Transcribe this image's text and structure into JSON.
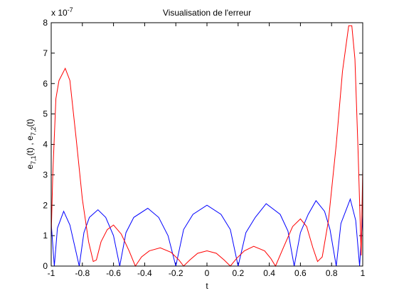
{
  "chart_data": {
    "type": "line",
    "title": "Visualisation de l'erreur",
    "xlabel": "t",
    "ylabel": [
      "e",
      "7,1",
      "(t) , e",
      "7,2",
      "(t)"
    ],
    "y_multiplier": {
      "base": "x 10",
      "exponent": "-7"
    },
    "xlim": [
      -1,
      1
    ],
    "xticks": [
      -1,
      -0.8,
      -0.6,
      -0.4,
      -0.2,
      0,
      0.2,
      0.4,
      0.6,
      0.8,
      1
    ],
    "ylim": [
      0,
      8
    ],
    "yticks": [
      0,
      1,
      2,
      3,
      4,
      5,
      6,
      7,
      8
    ],
    "grid": false,
    "series": [
      {
        "color": "#0000ff",
        "x": [
          -1,
          -0.98,
          -0.96,
          -0.92,
          -0.88,
          -0.82,
          -0.79,
          -0.755,
          -0.7,
          -0.65,
          -0.6,
          -0.56,
          -0.52,
          -0.47,
          -0.38,
          -0.31,
          -0.25,
          -0.2,
          -0.15,
          -0.09,
          0,
          0.09,
          0.15,
          0.2,
          0.25,
          0.31,
          0.38,
          0.47,
          0.52,
          0.56,
          0.6,
          0.65,
          0.7,
          0.755,
          0.79,
          0.83,
          0.86,
          0.92,
          0.955,
          0.98,
          1
        ],
        "values": [
          1.4,
          0,
          1.25,
          1.8,
          1.35,
          0,
          1.1,
          1.6,
          1.85,
          1.6,
          1.0,
          0,
          1.1,
          1.6,
          1.9,
          1.6,
          1.0,
          0,
          1.2,
          1.7,
          2.0,
          1.7,
          1.2,
          0,
          1.1,
          1.6,
          2.05,
          1.7,
          1.15,
          0,
          1.1,
          1.7,
          2.15,
          1.8,
          1.2,
          0,
          1.4,
          2.2,
          1.5,
          0,
          1.7
        ]
      },
      {
        "color": "#ff0000",
        "x": [
          -1,
          -0.99,
          -0.97,
          -0.95,
          -0.91,
          -0.88,
          -0.84,
          -0.8,
          -0.76,
          -0.73,
          -0.71,
          -0.68,
          -0.64,
          -0.6,
          -0.55,
          -0.5,
          -0.46,
          -0.42,
          -0.37,
          -0.3,
          -0.23,
          -0.18,
          -0.15,
          -0.11,
          -0.06,
          0,
          0.06,
          0.11,
          0.15,
          0.19,
          0.24,
          0.3,
          0.37,
          0.41,
          0.44,
          0.49,
          0.55,
          0.6,
          0.64,
          0.68,
          0.71,
          0.74,
          0.78,
          0.83,
          0.87,
          0.91,
          0.93,
          0.95,
          0.97,
          0.99,
          1
        ],
        "values": [
          1.0,
          3.0,
          5.5,
          6.1,
          6.5,
          6.1,
          4.2,
          2.2,
          0.8,
          0.15,
          0.2,
          0.8,
          1.2,
          1.35,
          1.05,
          0.5,
          0,
          0.3,
          0.5,
          0.6,
          0.45,
          0.2,
          0,
          0.2,
          0.42,
          0.5,
          0.42,
          0.2,
          0,
          0.25,
          0.5,
          0.65,
          0.5,
          0.25,
          0,
          0.6,
          1.3,
          1.55,
          1.3,
          0.6,
          0.15,
          0.3,
          1.5,
          4.0,
          6.4,
          7.9,
          7.9,
          6.8,
          3.8,
          0.35,
          3.2
        ]
      }
    ]
  }
}
